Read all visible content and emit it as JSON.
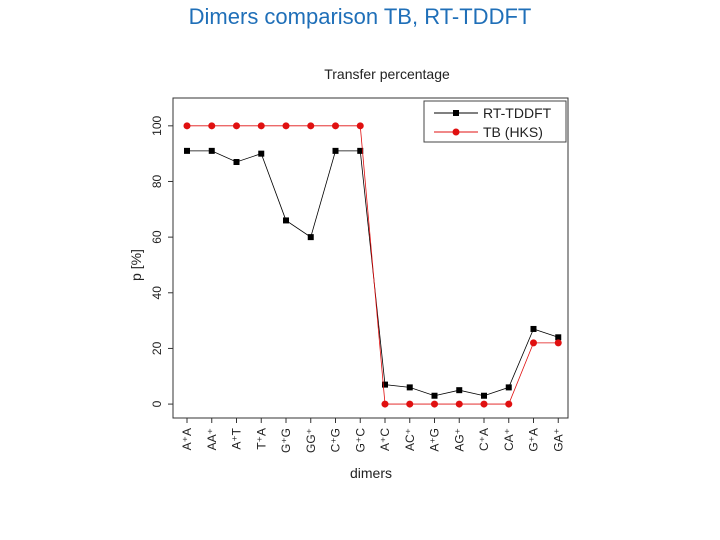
{
  "slide": {
    "title": "Dimers comparison TB, RT-TDDFT"
  },
  "chart_data": {
    "type": "line",
    "title": "Transfer percentage",
    "xlabel": "dimers",
    "ylabel": "p [%]",
    "ylim": [
      -5,
      110
    ],
    "yticks": [
      0,
      20,
      40,
      60,
      80,
      100
    ],
    "categories": [
      "A⁺A",
      "AA⁺",
      "A⁺T",
      "T⁺A",
      "G⁺G",
      "GG⁺",
      "C⁺G",
      "G⁺C",
      "A⁺C",
      "AC⁺",
      "A⁺G",
      "AG⁺",
      "C⁺A",
      "CA⁺",
      "G⁺A",
      "GA⁺"
    ],
    "series": [
      {
        "name": "RT-TDDFT",
        "color": "#000000",
        "marker": "square",
        "values": [
          91,
          91,
          87,
          90,
          66,
          60,
          91,
          91,
          7,
          6,
          3,
          5,
          3,
          6,
          27,
          24
        ]
      },
      {
        "name": "TB (HKS)",
        "color": "#e01010",
        "marker": "circle",
        "values": [
          100,
          100,
          100,
          100,
          100,
          100,
          100,
          100,
          0,
          0,
          0,
          0,
          0,
          0,
          22,
          22
        ]
      }
    ],
    "grid": false,
    "legend": "top-right"
  }
}
